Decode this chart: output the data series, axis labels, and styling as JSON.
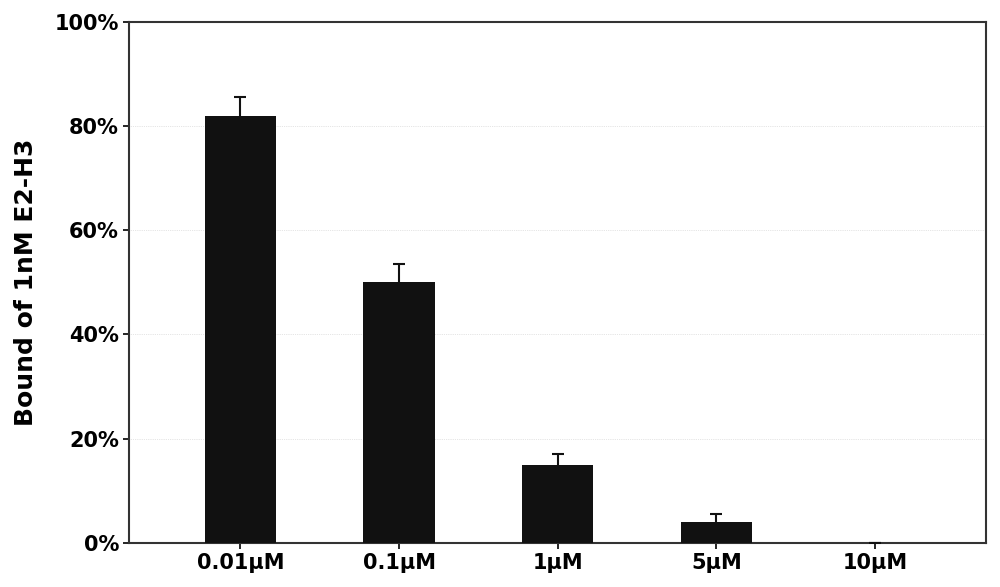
{
  "categories": [
    "0.01μM",
    "0.1μM",
    "1μM",
    "5μM",
    "10μM"
  ],
  "values": [
    82,
    50,
    15,
    4,
    0
  ],
  "errors": [
    3.5,
    3.5,
    2.0,
    1.5,
    0.0
  ],
  "bar_color": "#111111",
  "ylabel": "Bound of 1nM E2-H3",
  "ylim": [
    0,
    100
  ],
  "yticks": [
    0,
    20,
    40,
    60,
    80,
    100
  ],
  "ytick_labels": [
    "0%",
    "20%",
    "40%",
    "60%",
    "80%",
    "100%"
  ],
  "background_color": "#ffffff",
  "figure_background": "#ffffff",
  "bar_width": 0.45,
  "ylabel_fontsize": 18,
  "tick_fontsize": 15,
  "ylabel_fontweight": "bold",
  "xtick_fontsize": 15,
  "error_capsize": 4,
  "error_linewidth": 1.5,
  "grid_color": "#cccccc",
  "spine_linewidth": 1.5,
  "spine_color": "#333333"
}
